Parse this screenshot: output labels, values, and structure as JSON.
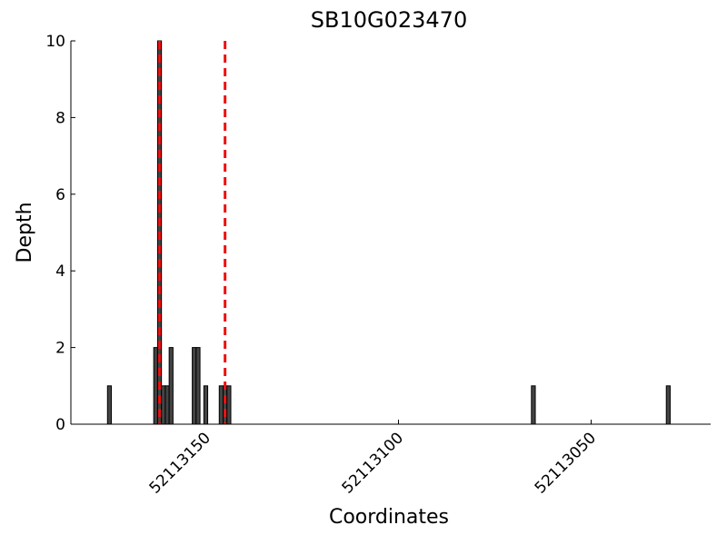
{
  "chart_data": {
    "type": "bar",
    "title": "SB10G023470",
    "x_label": "Coordinates",
    "y_label": "Depth",
    "x": [
      52113175,
      52113163,
      52113162,
      52113161,
      52113160,
      52113159,
      52113153,
      52113152,
      52113150,
      52113146,
      52113145,
      52113144,
      52113065,
      52113030
    ],
    "values": [
      1,
      2,
      10,
      1,
      1,
      2,
      2,
      2,
      1,
      1,
      1,
      1,
      1,
      1
    ],
    "color": "#444444",
    "xlim": [
      52113185,
      52113019
    ],
    "xticks": [
      52113150,
      52113100,
      52113050
    ],
    "ylim": [
      0,
      10
    ],
    "yticks": [
      0,
      2,
      4,
      6,
      8,
      10
    ],
    "vlines": [
      52113162,
      52113145
    ],
    "vline_color": "#ee1111"
  }
}
